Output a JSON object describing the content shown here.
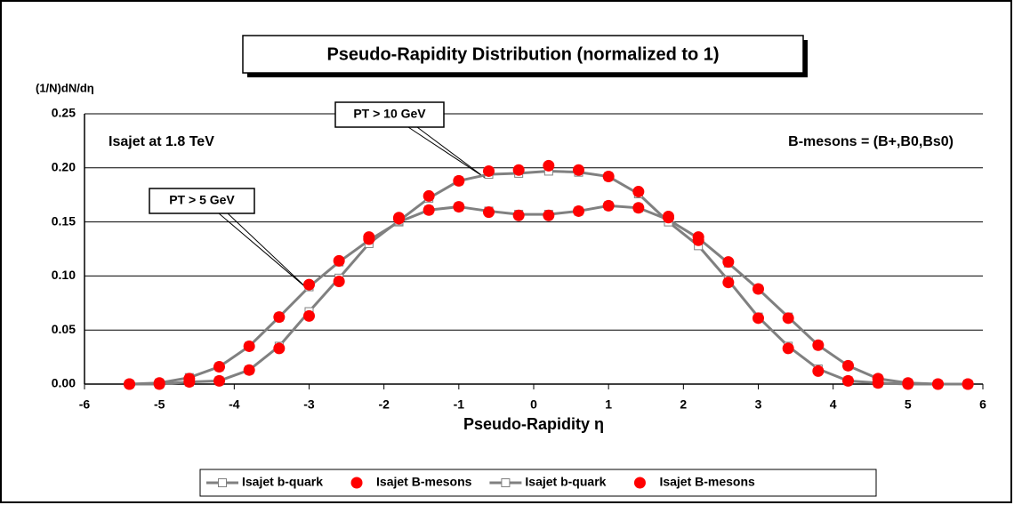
{
  "chart_data": {
    "type": "line",
    "title": "Pseudo-Rapidity Distribution (normalized to 1)",
    "y_label": "(1/N)dN/dη",
    "x_label": "Pseudo-Rapidity η",
    "annotations": [
      "Isajet at 1.8 TeV",
      "B-mesons = (B+,B0,Bs0)",
      "PT > 10 GeV",
      "PT > 5 GeV"
    ],
    "x": [
      -5.4,
      -5.0,
      -4.6,
      -4.2,
      -3.8,
      -3.4,
      -3.0,
      -2.6,
      -2.2,
      -1.8,
      -1.4,
      -1.0,
      -0.6,
      -0.2,
      0.2,
      0.6,
      1.0,
      1.4,
      1.8,
      2.2,
      2.6,
      3.0,
      3.4,
      3.8,
      4.2,
      4.6,
      5.0,
      5.4,
      5.8
    ],
    "series": [
      {
        "name": "Isajet b-quark",
        "color": "#808080",
        "marker": "square",
        "line": true,
        "values": [
          0,
          0.001,
          0.006,
          0.016,
          0.035,
          0.062,
          0.09,
          0.113,
          0.133,
          0.15,
          0.161,
          0.164,
          0.16,
          0.157,
          0.157,
          0.16,
          0.165,
          0.163,
          0.152,
          0.135,
          0.112,
          0.088,
          0.062,
          0.036,
          0.017,
          0.005,
          0.001,
          0,
          0
        ]
      },
      {
        "name": "Isajet B-mesons",
        "color": "#ff0000",
        "marker": "circle",
        "line": false,
        "values": [
          0,
          0.001,
          0.005,
          0.016,
          0.035,
          0.062,
          0.092,
          0.114,
          0.136,
          0.153,
          0.161,
          0.164,
          0.159,
          0.156,
          0.156,
          0.16,
          0.165,
          0.163,
          0.154,
          0.136,
          0.113,
          0.088,
          0.061,
          0.036,
          0.017,
          0.005,
          0.001,
          0,
          0
        ]
      },
      {
        "name": "Isajet b-quark",
        "color": "#808080",
        "marker": "square",
        "line": true,
        "values": [
          0,
          0,
          0.002,
          0.003,
          0.013,
          0.035,
          0.067,
          0.098,
          0.13,
          0.151,
          0.172,
          0.188,
          0.194,
          0.195,
          0.197,
          0.196,
          0.192,
          0.176,
          0.15,
          0.128,
          0.096,
          0.062,
          0.035,
          0.014,
          0.003,
          0.001,
          0,
          0,
          0
        ]
      },
      {
        "name": "Isajet B-mesons",
        "color": "#ff0000",
        "marker": "circle",
        "line": false,
        "values": [
          0,
          0,
          0.002,
          0.003,
          0.013,
          0.033,
          0.063,
          0.095,
          0.134,
          0.154,
          0.174,
          0.188,
          0.197,
          0.198,
          0.202,
          0.198,
          0.192,
          0.178,
          0.155,
          0.133,
          0.094,
          0.061,
          0.033,
          0.012,
          0.003,
          0.001,
          0,
          0,
          0
        ]
      }
    ],
    "xlim": [
      -6,
      6
    ],
    "xticks": [
      -6,
      -5,
      -4,
      -3,
      -2,
      -1,
      0,
      1,
      2,
      3,
      4,
      5,
      6
    ],
    "ylim": [
      0,
      0.25
    ],
    "yticks": [
      {
        "value": 0,
        "label": "0.00"
      },
      {
        "value": 0.05,
        "label": "0.05"
      },
      {
        "value": 0.1,
        "label": "0.10"
      },
      {
        "value": 0.15,
        "label": "0.15"
      },
      {
        "value": 0.2,
        "label": "0.20"
      },
      {
        "value": 0.25,
        "label": "0.25"
      }
    ],
    "grid": true,
    "legend": "bottom"
  }
}
